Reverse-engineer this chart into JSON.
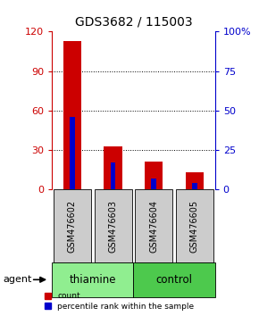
{
  "title": "GDS3682 / 115003",
  "samples": [
    "GSM476602",
    "GSM476603",
    "GSM476604",
    "GSM476605"
  ],
  "count_values": [
    113,
    33,
    21,
    13
  ],
  "percentile_values": [
    46,
    17,
    7,
    4
  ],
  "groups": [
    {
      "label": "thiamine",
      "color": "#90EE90",
      "indices": [
        0,
        1
      ]
    },
    {
      "label": "control",
      "color": "#4DC94D",
      "indices": [
        2,
        3
      ]
    }
  ],
  "left_ylim": [
    0,
    120
  ],
  "right_ylim": [
    0,
    100
  ],
  "left_yticks": [
    0,
    30,
    60,
    90,
    120
  ],
  "right_yticks": [
    0,
    25,
    50,
    75,
    100
  ],
  "right_yticklabels": [
    "0",
    "25",
    "50",
    "75",
    "100%"
  ],
  "left_tick_color": "#cc0000",
  "right_tick_color": "#0000cc",
  "bar_color_red": "#cc0000",
  "bar_color_blue": "#0000cc",
  "sample_box_color": "#cccccc",
  "agent_label": "agent",
  "legend_items": [
    {
      "color": "#cc0000",
      "label": "count"
    },
    {
      "color": "#0000cc",
      "label": "percentile rank within the sample"
    }
  ]
}
